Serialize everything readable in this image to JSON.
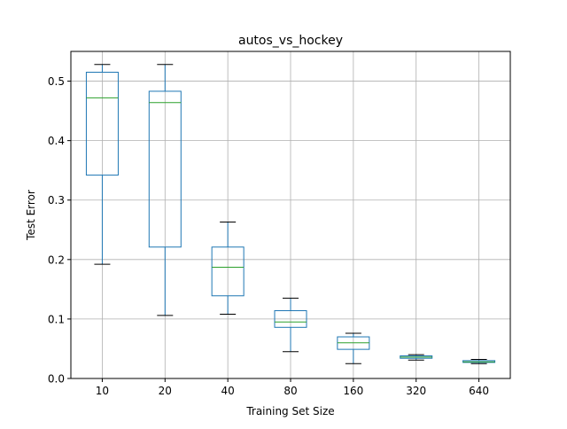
{
  "chart_data": {
    "type": "box",
    "title": "autos_vs_hockey",
    "xlabel": "Training Set Size",
    "ylabel": "Test Error",
    "ylim": [
      0,
      0.55
    ],
    "yticks": [
      "0.0",
      "0.1",
      "0.2",
      "0.3",
      "0.4",
      "0.5"
    ],
    "ytick_values": [
      0,
      0.1,
      0.2,
      0.3,
      0.4,
      0.5
    ],
    "grid": true,
    "categories": [
      "10",
      "20",
      "40",
      "80",
      "160",
      "320",
      "640"
    ],
    "boxes": [
      {
        "whisker_low": 0.192,
        "q1": 0.342,
        "median": 0.472,
        "q3": 0.515,
        "whisker_high": 0.528
      },
      {
        "whisker_low": 0.106,
        "q1": 0.221,
        "median": 0.464,
        "q3": 0.483,
        "whisker_high": 0.528
      },
      {
        "whisker_low": 0.108,
        "q1": 0.139,
        "median": 0.187,
        "q3": 0.221,
        "whisker_high": 0.263
      },
      {
        "whisker_low": 0.045,
        "q1": 0.086,
        "median": 0.095,
        "q3": 0.114,
        "whisker_high": 0.135
      },
      {
        "whisker_low": 0.025,
        "q1": 0.049,
        "median": 0.06,
        "q3": 0.07,
        "whisker_high": 0.076
      },
      {
        "whisker_low": 0.031,
        "q1": 0.034,
        "median": 0.036,
        "q3": 0.038,
        "whisker_high": 0.04
      },
      {
        "whisker_low": 0.025,
        "q1": 0.027,
        "median": 0.028,
        "q3": 0.03,
        "whisker_high": 0.032
      }
    ],
    "colors": {
      "box": "#1f77b4",
      "median": "#2ca02c",
      "whisker_cap": "#000000",
      "grid": "#b0b0b0",
      "axes": "#000000"
    }
  }
}
